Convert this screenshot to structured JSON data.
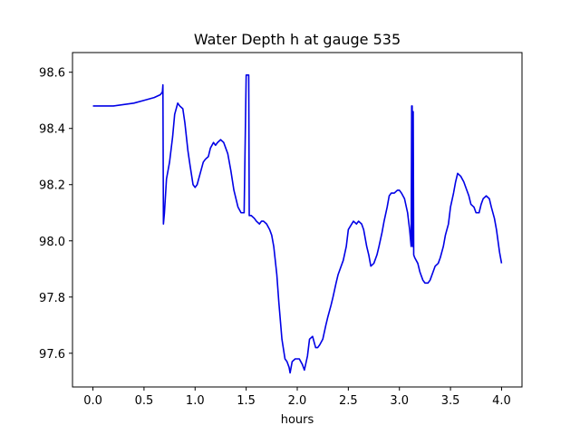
{
  "chart_data": {
    "type": "line",
    "title": "Water Depth h at gauge 535",
    "xlabel": "hours",
    "ylabel": "",
    "xlim": [
      -0.2,
      4.2
    ],
    "ylim": [
      97.48,
      98.67
    ],
    "xticks": [
      0.0,
      0.5,
      1.0,
      1.5,
      2.0,
      2.5,
      3.0,
      3.5,
      4.0
    ],
    "xtick_labels": [
      "0.0",
      "0.5",
      "1.0",
      "1.5",
      "2.0",
      "2.5",
      "3.0",
      "3.5",
      "4.0"
    ],
    "yticks": [
      97.6,
      97.8,
      98.0,
      98.2,
      98.4,
      98.6
    ],
    "ytick_labels": [
      "97.6",
      "97.8",
      "98.0",
      "98.2",
      "98.4",
      "98.6"
    ],
    "grid": false,
    "series": [
      {
        "name": "",
        "color": "#0000e6",
        "x": [
          0.0,
          0.2,
          0.4,
          0.5,
          0.6,
          0.66,
          0.68,
          0.685,
          0.69,
          0.7,
          0.72,
          0.75,
          0.78,
          0.8,
          0.83,
          0.85,
          0.88,
          0.9,
          0.93,
          0.95,
          0.98,
          1.0,
          1.02,
          1.05,
          1.08,
          1.1,
          1.13,
          1.15,
          1.18,
          1.2,
          1.22,
          1.25,
          1.28,
          1.3,
          1.32,
          1.35,
          1.38,
          1.4,
          1.42,
          1.45,
          1.48,
          1.5,
          1.52,
          1.525,
          1.53,
          1.535,
          1.54,
          1.55,
          1.58,
          1.6,
          1.63,
          1.65,
          1.67,
          1.7,
          1.73,
          1.75,
          1.77,
          1.8,
          1.82,
          1.85,
          1.88,
          1.9,
          1.92,
          1.93,
          1.95,
          1.98,
          2.0,
          2.02,
          2.05,
          2.07,
          2.1,
          2.12,
          2.15,
          2.18,
          2.2,
          2.22,
          2.25,
          2.28,
          2.3,
          2.33,
          2.35,
          2.38,
          2.4,
          2.43,
          2.45,
          2.48,
          2.5,
          2.55,
          2.58,
          2.6,
          2.63,
          2.65,
          2.68,
          2.7,
          2.72,
          2.75,
          2.78,
          2.8,
          2.83,
          2.85,
          2.88,
          2.9,
          2.92,
          2.95,
          2.98,
          3.0,
          3.02,
          3.05,
          3.08,
          3.1,
          3.11,
          3.115,
          3.12,
          3.125,
          3.13,
          3.135,
          3.14,
          3.15,
          3.18,
          3.2,
          3.23,
          3.25,
          3.28,
          3.3,
          3.33,
          3.35,
          3.38,
          3.4,
          3.43,
          3.45,
          3.48,
          3.5,
          3.53,
          3.55,
          3.57,
          3.6,
          3.63,
          3.65,
          3.68,
          3.7,
          3.73,
          3.75,
          3.78,
          3.8,
          3.82,
          3.85,
          3.88,
          3.9,
          3.93,
          3.95,
          3.98,
          4.0
        ],
        "y": [
          98.48,
          98.48,
          98.49,
          98.5,
          98.51,
          98.52,
          98.53,
          98.555,
          98.06,
          98.1,
          98.22,
          98.28,
          98.37,
          98.45,
          98.49,
          98.48,
          98.47,
          98.42,
          98.32,
          98.27,
          98.2,
          98.19,
          98.2,
          98.24,
          98.28,
          98.29,
          98.3,
          98.33,
          98.35,
          98.34,
          98.35,
          98.36,
          98.35,
          98.33,
          98.31,
          98.25,
          98.18,
          98.15,
          98.12,
          98.1,
          98.1,
          98.59,
          98.59,
          98.59,
          98.09,
          98.09,
          98.09,
          98.09,
          98.08,
          98.07,
          98.06,
          98.07,
          98.07,
          98.06,
          98.04,
          98.02,
          97.98,
          97.88,
          97.78,
          97.65,
          97.58,
          97.57,
          97.55,
          97.53,
          97.57,
          97.58,
          97.58,
          97.58,
          97.56,
          97.54,
          97.59,
          97.65,
          97.66,
          97.62,
          97.62,
          97.63,
          97.65,
          97.7,
          97.73,
          97.77,
          97.8,
          97.85,
          97.88,
          97.91,
          97.93,
          97.98,
          98.04,
          98.07,
          98.06,
          98.07,
          98.06,
          98.04,
          97.98,
          97.95,
          97.91,
          97.92,
          97.95,
          97.98,
          98.03,
          98.07,
          98.12,
          98.16,
          98.17,
          98.17,
          98.18,
          98.18,
          98.17,
          98.15,
          98.1,
          98.04,
          98.0,
          97.98,
          98.48,
          98.48,
          97.98,
          98.46,
          97.95,
          97.94,
          97.92,
          97.89,
          97.86,
          97.85,
          97.85,
          97.86,
          97.89,
          97.91,
          97.92,
          97.94,
          97.98,
          98.02,
          98.06,
          98.12,
          98.17,
          98.21,
          98.24,
          98.23,
          98.21,
          98.19,
          98.16,
          98.13,
          98.12,
          98.1,
          98.1,
          98.13,
          98.15,
          98.16,
          98.15,
          98.12,
          98.08,
          98.04,
          97.96,
          97.92
        ]
      }
    ]
  }
}
